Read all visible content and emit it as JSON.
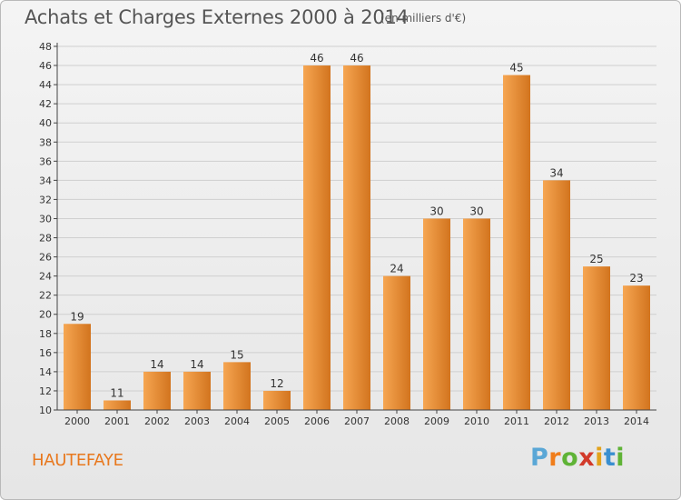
{
  "header": {
    "title": "Achats et Charges Externes 2000 à 2014",
    "unit": "(en milliers d'€)"
  },
  "footer": {
    "commune": "HAUTEFAYE",
    "logo_letters": [
      "P",
      "r",
      "o",
      "x",
      "i",
      "t",
      "i"
    ],
    "logo_colors": [
      "#5aa7d6",
      "#f07d1a",
      "#5fb336",
      "#d23a2a",
      "#e3a21a",
      "#3a8fd0",
      "#5fb336"
    ]
  },
  "colors": {
    "bar_light": "#f6a652",
    "bar_dark": "#d2741e",
    "grid": "#cfcfcf",
    "axis": "#444444"
  },
  "chart_data": {
    "type": "bar",
    "categories": [
      "2000",
      "2001",
      "2002",
      "2003",
      "2004",
      "2005",
      "2006",
      "2007",
      "2008",
      "2009",
      "2010",
      "2011",
      "2012",
      "2013",
      "2014"
    ],
    "values": [
      19,
      11,
      14,
      14,
      15,
      12,
      46,
      46,
      24,
      30,
      30,
      45,
      34,
      25,
      23
    ],
    "ylim": [
      10,
      48
    ],
    "yticks": [
      10,
      12,
      14,
      16,
      18,
      20,
      22,
      24,
      26,
      28,
      30,
      32,
      34,
      36,
      38,
      40,
      42,
      44,
      46,
      48
    ],
    "grid": true
  }
}
